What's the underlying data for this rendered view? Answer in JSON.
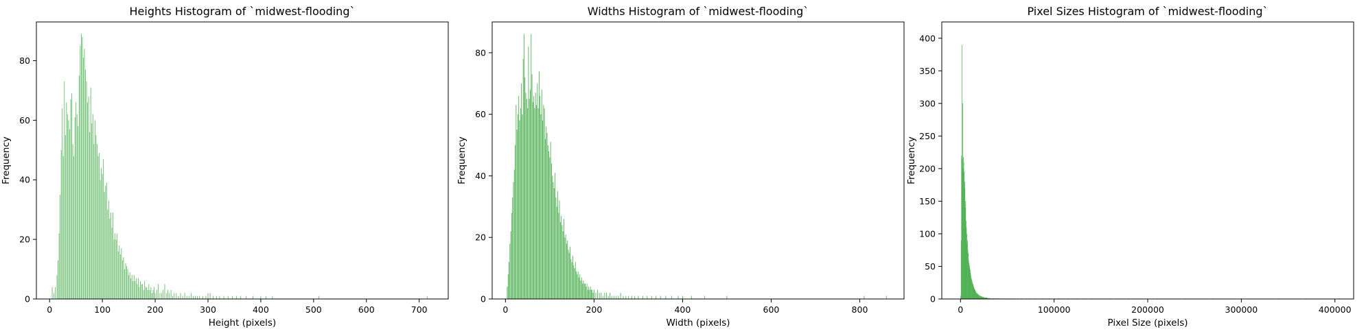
{
  "chart_data": [
    {
      "type": "bar",
      "title": "Heights Histogram of `midwest-flooding`",
      "xlabel": "Height (pixels)",
      "ylabel": "Frequency",
      "xlim": [
        -25,
        755
      ],
      "ylim": [
        0,
        93
      ],
      "xticks": [
        0,
        100,
        200,
        300,
        400,
        500,
        600,
        700
      ],
      "yticks": [
        0,
        20,
        40,
        60,
        80
      ],
      "bar_color": "#4CAF50",
      "bar_width": 1,
      "x": [
        5,
        8,
        11,
        14,
        16,
        18,
        20,
        22,
        24,
        26,
        28,
        30,
        32,
        34,
        36,
        38,
        40,
        42,
        44,
        46,
        48,
        50,
        52,
        54,
        56,
        58,
        60,
        62,
        64,
        66,
        68,
        70,
        72,
        74,
        76,
        78,
        80,
        82,
        84,
        86,
        88,
        90,
        92,
        94,
        96,
        98,
        100,
        102,
        104,
        106,
        108,
        110,
        112,
        114,
        116,
        118,
        120,
        122,
        124,
        126,
        128,
        130,
        132,
        134,
        136,
        138,
        140,
        142,
        144,
        146,
        148,
        150,
        152,
        154,
        156,
        158,
        160,
        162,
        164,
        166,
        168,
        170,
        172,
        174,
        176,
        178,
        180,
        182,
        184,
        186,
        188,
        190,
        192,
        194,
        196,
        198,
        200,
        203,
        206,
        209,
        212,
        215,
        218,
        221,
        224,
        227,
        230,
        233,
        236,
        240,
        244,
        248,
        252,
        256,
        260,
        264,
        268,
        272,
        276,
        280,
        284,
        290,
        296,
        300,
        304,
        310,
        316,
        322,
        330,
        338,
        346,
        354,
        362,
        372,
        385,
        400,
        410,
        422,
        510,
        715
      ],
      "values": [
        4,
        2,
        4,
        8,
        13,
        22,
        35,
        50,
        64,
        48,
        73,
        55,
        66,
        62,
        60,
        57,
        67,
        69,
        52,
        48,
        61,
        66,
        62,
        58,
        75,
        85,
        89,
        88,
        81,
        84,
        77,
        73,
        66,
        68,
        56,
        71,
        59,
        62,
        52,
        60,
        55,
        52,
        48,
        49,
        40,
        44,
        42,
        47,
        36,
        38,
        39,
        30,
        33,
        27,
        29,
        24,
        29,
        20,
        22,
        20,
        22,
        16,
        18,
        15,
        17,
        13,
        14,
        10,
        12,
        11,
        10,
        8,
        9,
        7,
        8,
        6,
        8,
        6,
        7,
        5,
        7,
        4,
        6,
        5,
        5,
        3,
        6,
        4,
        4,
        3,
        5,
        3,
        4,
        2,
        3,
        4,
        2,
        3,
        5,
        2,
        2,
        3,
        5,
        2,
        3,
        2,
        3,
        1,
        2,
        2,
        1,
        2,
        1,
        2,
        1,
        1,
        2,
        1,
        1,
        1,
        1,
        1,
        1,
        2,
        2,
        1,
        1,
        1,
        1,
        1,
        1,
        1,
        1,
        1,
        1,
        1,
        1,
        1,
        1,
        1
      ]
    },
    {
      "type": "bar",
      "title": "Widths Histogram of `midwest-flooding`",
      "xlabel": "Width (pixels)",
      "ylabel": "Frequency",
      "xlim": [
        -30,
        900
      ],
      "ylim": [
        0,
        90
      ],
      "xticks": [
        0,
        200,
        400,
        600,
        800
      ],
      "yticks": [
        0,
        20,
        40,
        60,
        80
      ],
      "bar_color": "#4CAF50",
      "bar_width": 1.4,
      "x": [
        4,
        6,
        8,
        10,
        12,
        14,
        16,
        18,
        20,
        22,
        24,
        26,
        28,
        30,
        32,
        34,
        36,
        38,
        40,
        42,
        44,
        46,
        48,
        50,
        52,
        54,
        56,
        58,
        60,
        62,
        64,
        66,
        68,
        70,
        72,
        74,
        76,
        78,
        80,
        82,
        84,
        86,
        88,
        90,
        92,
        94,
        96,
        98,
        100,
        102,
        104,
        106,
        108,
        110,
        112,
        114,
        116,
        118,
        120,
        122,
        124,
        126,
        128,
        130,
        132,
        134,
        136,
        138,
        140,
        142,
        144,
        146,
        148,
        150,
        152,
        154,
        156,
        158,
        160,
        162,
        164,
        166,
        168,
        170,
        172,
        174,
        176,
        178,
        180,
        182,
        184,
        186,
        188,
        190,
        192,
        194,
        196,
        198,
        200,
        204,
        208,
        212,
        216,
        220,
        224,
        228,
        232,
        236,
        240,
        245,
        250,
        255,
        260,
        266,
        272,
        278,
        285,
        292,
        300,
        310,
        320,
        330,
        340,
        350,
        362,
        375,
        390,
        400,
        420,
        450,
        500,
        810,
        860
      ],
      "values": [
        4,
        8,
        12,
        18,
        22,
        28,
        33,
        38,
        42,
        50,
        63,
        55,
        60,
        66,
        58,
        62,
        70,
        60,
        78,
        86,
        72,
        67,
        65,
        62,
        82,
        65,
        68,
        86,
        73,
        64,
        66,
        62,
        67,
        63,
        70,
        62,
        74,
        66,
        60,
        68,
        58,
        63,
        62,
        52,
        56,
        54,
        50,
        48,
        46,
        51,
        44,
        40,
        38,
        36,
        41,
        33,
        30,
        35,
        28,
        32,
        25,
        27,
        24,
        22,
        26,
        20,
        21,
        18,
        19,
        16,
        15,
        17,
        13,
        12,
        14,
        11,
        10,
        12,
        9,
        8,
        9,
        7,
        8,
        6,
        7,
        5,
        6,
        5,
        5,
        4,
        5,
        3,
        4,
        3,
        4,
        3,
        3,
        2,
        3,
        2,
        3,
        2,
        2,
        1,
        2,
        2,
        1,
        2,
        1,
        1,
        1,
        1,
        2,
        1,
        1,
        1,
        1,
        1,
        1,
        1,
        1,
        1,
        1,
        1,
        1,
        1,
        1,
        1,
        1,
        1,
        1,
        1,
        1
      ]
    },
    {
      "type": "bar",
      "title": "Pixel Sizes Histogram of `midwest-flooding`",
      "xlabel": "Pixel Size (pixels)",
      "ylabel": "Frequency",
      "xlim": [
        -20000,
        420000
      ],
      "ylim": [
        0,
        425
      ],
      "xticks": [
        0,
        100000,
        200000,
        300000,
        400000
      ],
      "yticks": [
        0,
        50,
        100,
        150,
        200,
        250,
        300,
        350,
        400
      ],
      "bar_color": "#4CAF50",
      "bar_width": 420,
      "x": [
        300,
        700,
        1100,
        1500,
        1900,
        2300,
        2700,
        3100,
        3500,
        3900,
        4300,
        4700,
        5100,
        5500,
        5900,
        6300,
        6700,
        7100,
        7500,
        7900,
        8300,
        8700,
        9100,
        9500,
        9900,
        10300,
        10700,
        11100,
        11500,
        11900,
        12300,
        12700,
        13100,
        13500,
        13900,
        14300,
        14700,
        15100,
        15500,
        15900,
        16300,
        16700,
        17100,
        17500,
        17900,
        18300,
        18700,
        19100,
        19500,
        19900,
        20300,
        20700,
        21100,
        21500,
        21900,
        22300,
        22700,
        23100,
        23500,
        23900,
        24300,
        24700,
        25100,
        25500,
        25900,
        26300,
        26700,
        27100,
        27500,
        27900,
        28300,
        28700,
        29100,
        29500,
        29900,
        30600,
        31500,
        32500,
        33500,
        34500,
        35500,
        36500,
        37500,
        38500,
        39500,
        41000,
        43000,
        45000,
        47000,
        49000,
        52000,
        55000,
        58000,
        61000,
        65000,
        70000,
        75000,
        80000,
        88000,
        95000,
        105000,
        115000,
        125000,
        140000,
        160000,
        180000,
        210000,
        240000,
        270000,
        300000,
        340000,
        370000,
        405000
      ],
      "values": [
        5,
        90,
        220,
        390,
        215,
        300,
        200,
        218,
        210,
        195,
        170,
        180,
        140,
        150,
        120,
        110,
        100,
        85,
        90,
        75,
        70,
        60,
        55,
        52,
        48,
        45,
        40,
        36,
        32,
        30,
        28,
        25,
        24,
        22,
        20,
        18,
        16,
        15,
        14,
        12,
        12,
        10,
        9,
        9,
        8,
        8,
        7,
        7,
        6,
        6,
        5,
        5,
        5,
        4,
        4,
        4,
        4,
        3,
        3,
        3,
        3,
        3,
        2,
        2,
        2,
        2,
        2,
        2,
        2,
        2,
        2,
        2,
        1,
        1,
        1,
        2,
        1,
        1,
        1,
        1,
        1,
        1,
        1,
        1,
        1,
        1,
        1,
        1,
        1,
        1,
        1,
        1,
        1,
        1,
        1,
        1,
        1,
        1,
        1,
        1,
        1,
        1,
        1,
        1,
        1,
        1,
        1,
        1,
        1,
        1,
        1,
        1,
        1
      ]
    }
  ]
}
